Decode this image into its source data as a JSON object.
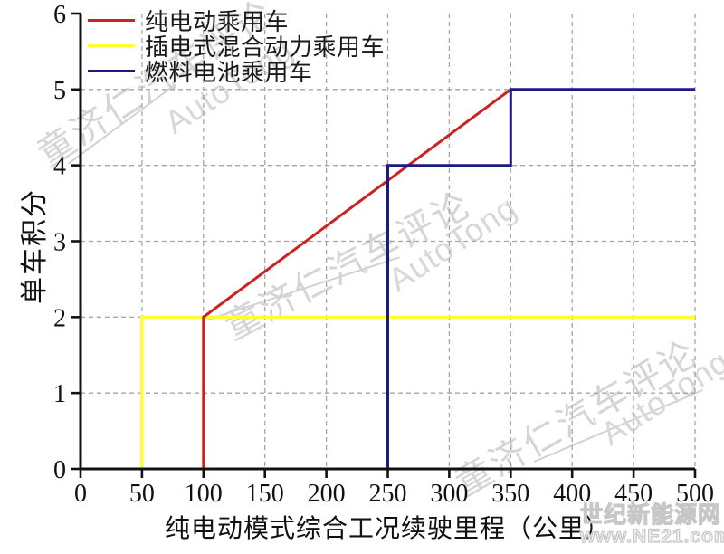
{
  "chart_data": {
    "type": "line",
    "title": "",
    "xlabel": "纯电动模式综合工况续驶里程（公里）",
    "ylabel": "单车积分",
    "xlim": [
      0,
      500
    ],
    "ylim": [
      0,
      6
    ],
    "x_ticks": [
      0,
      50,
      100,
      150,
      200,
      250,
      300,
      350,
      400,
      450,
      500
    ],
    "y_ticks": [
      0,
      1,
      2,
      3,
      4,
      5,
      6
    ],
    "grid": "dashed",
    "legend_position": "top-left",
    "series": [
      {
        "name": "纯电动乘用车",
        "color": "#cc2222",
        "points": [
          [
            100,
            0
          ],
          [
            100,
            2
          ],
          [
            350,
            5
          ]
        ]
      },
      {
        "name": "插电式混合动力乘用车",
        "color": "#ffff33",
        "points": [
          [
            50,
            0
          ],
          [
            50,
            2
          ],
          [
            500,
            2
          ]
        ]
      },
      {
        "name": "燃料电池乘用车",
        "color": "#1a1a80",
        "points": [
          [
            250,
            0
          ],
          [
            250,
            4
          ],
          [
            350,
            4
          ],
          [
            350,
            5
          ],
          [
            500,
            5
          ]
        ]
      }
    ]
  },
  "watermarks": {
    "brand_cn": "童济仁汽车评论",
    "brand_en": "AutoTong",
    "site_name": "世纪新能源网",
    "site_url": "www.NE21.com"
  }
}
